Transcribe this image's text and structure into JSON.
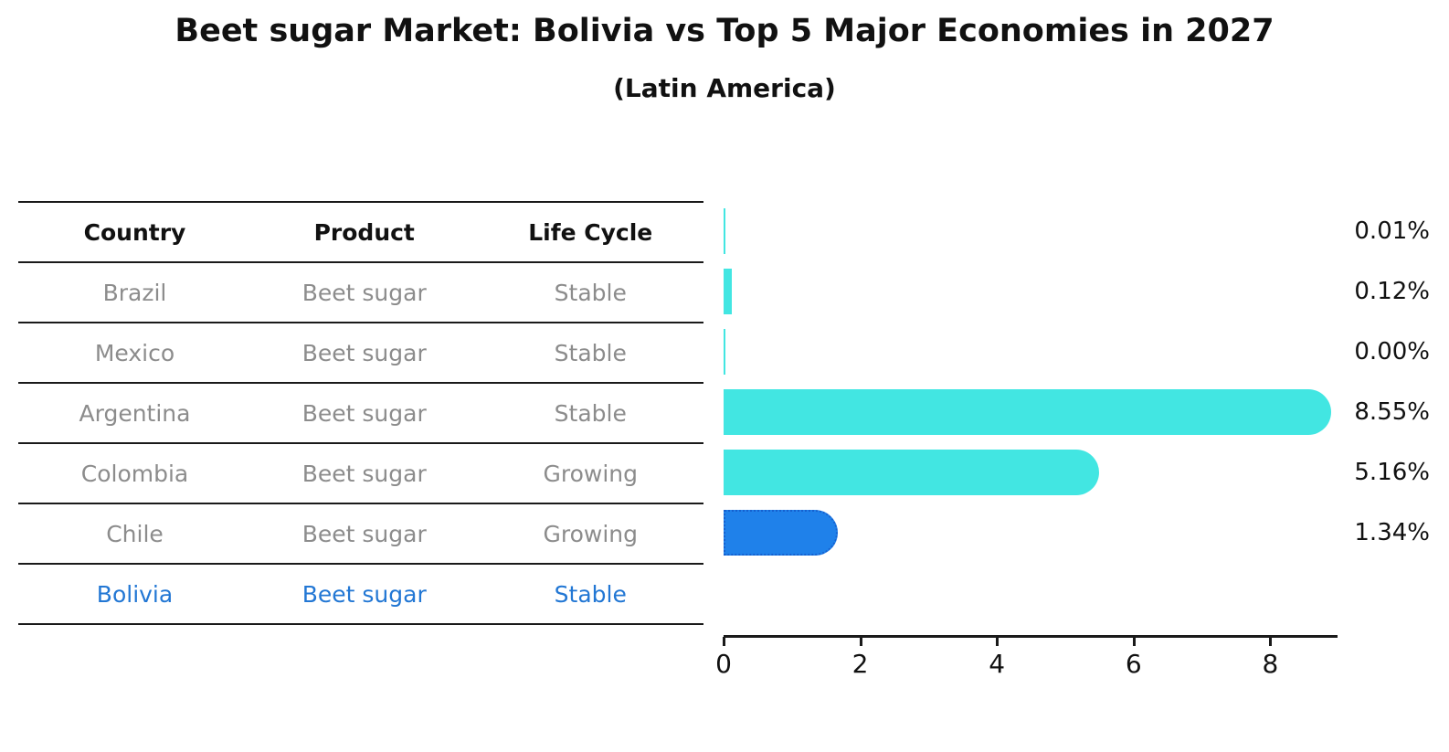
{
  "title": "Beet sugar Market: Bolivia vs Top 5 Major Economies in 2027",
  "subtitle": "(Latin America)",
  "table": {
    "headers": [
      "Country",
      "Product",
      "Life Cycle"
    ],
    "rows": [
      {
        "country": "Brazil",
        "product": "Beet sugar",
        "life_cycle": "Stable",
        "highlighted": false
      },
      {
        "country": "Mexico",
        "product": "Beet sugar",
        "life_cycle": "Stable",
        "highlighted": false
      },
      {
        "country": "Argentina",
        "product": "Beet sugar",
        "life_cycle": "Stable",
        "highlighted": false
      },
      {
        "country": "Colombia",
        "product": "Beet sugar",
        "life_cycle": "Growing",
        "highlighted": false
      },
      {
        "country": "Chile",
        "product": "Beet sugar",
        "life_cycle": "Growing",
        "highlighted": false
      },
      {
        "country": "Bolivia",
        "product": "Beet sugar",
        "life_cycle": "Stable",
        "highlighted": true
      }
    ]
  },
  "chart_data": {
    "type": "bar",
    "orientation": "horizontal",
    "title": "Beet sugar Market: Bolivia vs Top 5 Major Economies in 2027",
    "subtitle": "(Latin America)",
    "categories": [
      "Brazil",
      "Mexico",
      "Argentina",
      "Colombia",
      "Chile",
      "Bolivia"
    ],
    "values": [
      0.01,
      0.12,
      0.0,
      8.55,
      5.16,
      1.34
    ],
    "value_labels": [
      "0.01%",
      "0.12%",
      "0.00%",
      "8.55%",
      "5.16%",
      "1.34%"
    ],
    "xlabel": "",
    "ylabel": "",
    "xlim": [
      0,
      9
    ],
    "xticks": [
      0,
      2,
      4,
      6,
      8
    ],
    "grid": false,
    "legend": null,
    "bar_color": "#42e6e2",
    "highlight_index": 5,
    "highlighted_category": "Bolivia",
    "highlight_color": "#1f81ea",
    "highlight_border_color": "#1560cf"
  },
  "colors": {
    "background": "#ffffff",
    "title_text": "#111111",
    "table_text_muted": "#8c8c8c",
    "highlight_text": "#2277d4",
    "line": "#1a1a1a"
  }
}
